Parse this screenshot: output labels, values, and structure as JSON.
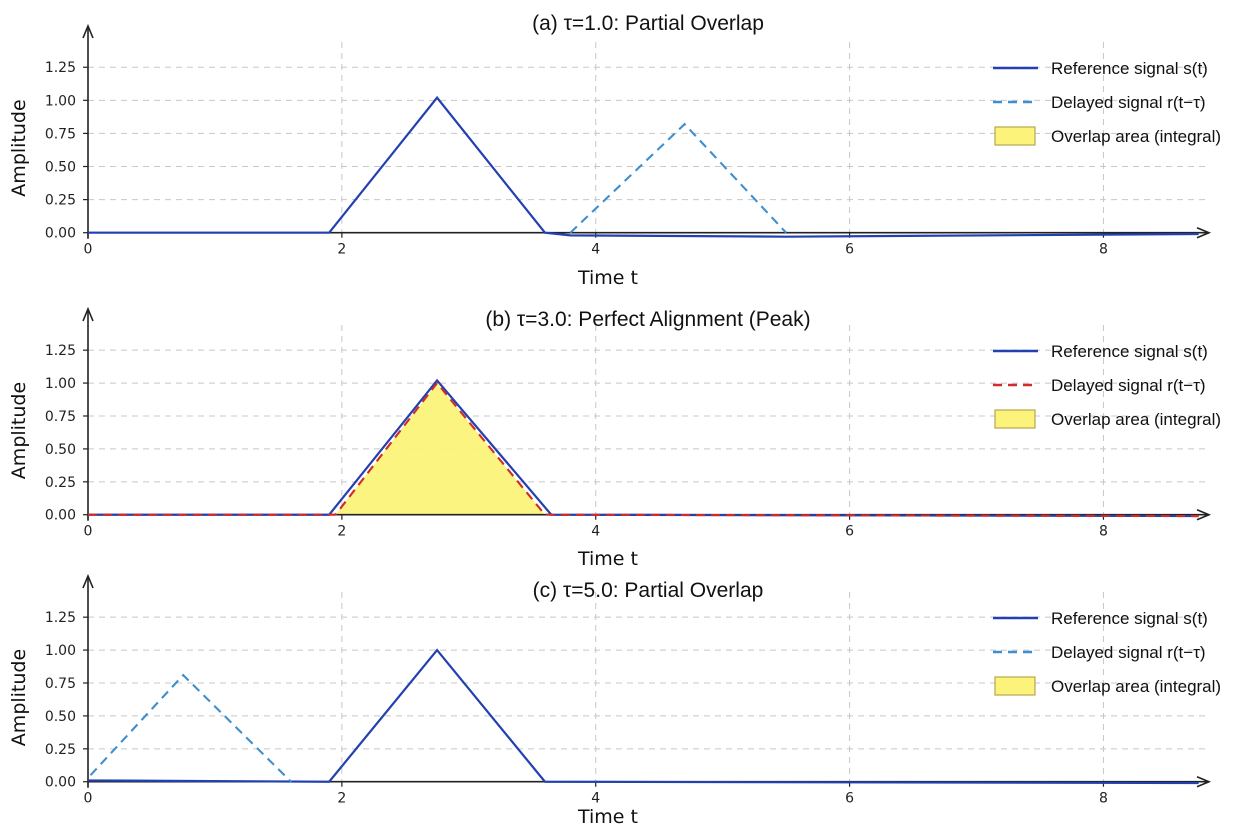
{
  "colors": {
    "reference": "#2340b0",
    "delayed_light": "#3d8fcf",
    "delayed_red": "#d02c2c",
    "overlap_fill": "#fbf37a",
    "overlap_edge": "#b7a650"
  },
  "chart_data": [
    {
      "id": "a",
      "type": "line",
      "title": "(a) τ=1.0: Partial Overlap",
      "xlabel": "Time  t",
      "ylabel": "Amplitude",
      "xlim": [
        0,
        8.8
      ],
      "ylim": [
        -0.04,
        1.35
      ],
      "xticks": [
        0,
        2,
        4,
        6,
        8
      ],
      "yticks": [
        0.0,
        0.25,
        0.5,
        0.75,
        1.0,
        1.25
      ],
      "ytick_labels": [
        "0.00",
        "0.25",
        "0.50",
        "0.75",
        "1.00",
        "1.25"
      ],
      "grid": true,
      "legend_position": "top-right",
      "delayed_style": "light",
      "series": [
        {
          "name": "Reference signal s(t)",
          "style": "solid",
          "x": [
            0,
            1.9,
            2.75,
            3.6,
            3.8,
            5.5,
            8.75
          ],
          "y": [
            0,
            0,
            1.02,
            0,
            -0.02,
            -0.03,
            -0.01
          ]
        },
        {
          "name": "Delayed signal r(t−τ)",
          "style": "dashed",
          "x": [
            3.8,
            4.7,
            5.5
          ],
          "y": [
            0,
            0.82,
            0
          ]
        }
      ],
      "overlap": null,
      "legend": [
        "Reference signal s(t)",
        "Delayed signal r(t−τ)",
        "Overlap area (integral)"
      ]
    },
    {
      "id": "b",
      "type": "line",
      "title": "(b) τ=3.0: Perfect Alignment (Peak)",
      "xlabel": "Time  t",
      "ylabel": "Amplitude",
      "xlim": [
        0,
        8.8
      ],
      "ylim": [
        -0.04,
        1.35
      ],
      "xticks": [
        0,
        2,
        4,
        6,
        8
      ],
      "yticks": [
        0.0,
        0.25,
        0.5,
        0.75,
        1.0,
        1.25
      ],
      "ytick_labels": [
        "0.00",
        "0.25",
        "0.50",
        "0.75",
        "1.00",
        "1.25"
      ],
      "grid": true,
      "legend_position": "top-right",
      "delayed_style": "red",
      "series": [
        {
          "name": "Reference signal s(t)",
          "style": "solid",
          "x": [
            0,
            1.9,
            2.75,
            3.65,
            8.75
          ],
          "y": [
            0,
            0,
            1.02,
            0,
            -0.01
          ]
        },
        {
          "name": "Delayed signal r(t−τ)",
          "style": "dashed",
          "x": [
            0,
            1.95,
            2.75,
            3.6,
            8.75
          ],
          "y": [
            0,
            0,
            1.0,
            0,
            -0.01
          ]
        }
      ],
      "overlap": {
        "x": [
          1.95,
          2.75,
          3.6
        ],
        "y": [
          0,
          1.0,
          0
        ]
      },
      "legend": [
        "Reference signal s(t)",
        "Delayed signal r(t−τ)",
        "Overlap area (integral)"
      ]
    },
    {
      "id": "c",
      "type": "line",
      "title": "(c) τ=5.0: Partial Overlap",
      "xlabel": "Time  t",
      "ylabel": "Amplitude",
      "xlim": [
        0,
        8.8
      ],
      "ylim": [
        -0.04,
        1.35
      ],
      "xticks": [
        0,
        2,
        4,
        6,
        8
      ],
      "yticks": [
        0.0,
        0.25,
        0.5,
        0.75,
        1.0,
        1.25
      ],
      "ytick_labels": [
        "0.00",
        "0.25",
        "0.50",
        "0.75",
        "1.00",
        "1.25"
      ],
      "grid": true,
      "legend_position": "top-right",
      "delayed_style": "light",
      "series": [
        {
          "name": "Reference signal s(t)",
          "style": "solid",
          "x": [
            0,
            1.9,
            2.75,
            3.6,
            8.75
          ],
          "y": [
            0.01,
            0,
            1.0,
            0,
            -0.01
          ]
        },
        {
          "name": "Delayed signal r(t−τ)",
          "style": "dashed",
          "x": [
            0.02,
            0.75,
            1.6
          ],
          "y": [
            0.05,
            0.81,
            0
          ]
        }
      ],
      "overlap": null,
      "legend": [
        "Reference signal s(t)",
        "Delayed signal r(t−τ)",
        "Overlap area (integral)"
      ]
    }
  ]
}
